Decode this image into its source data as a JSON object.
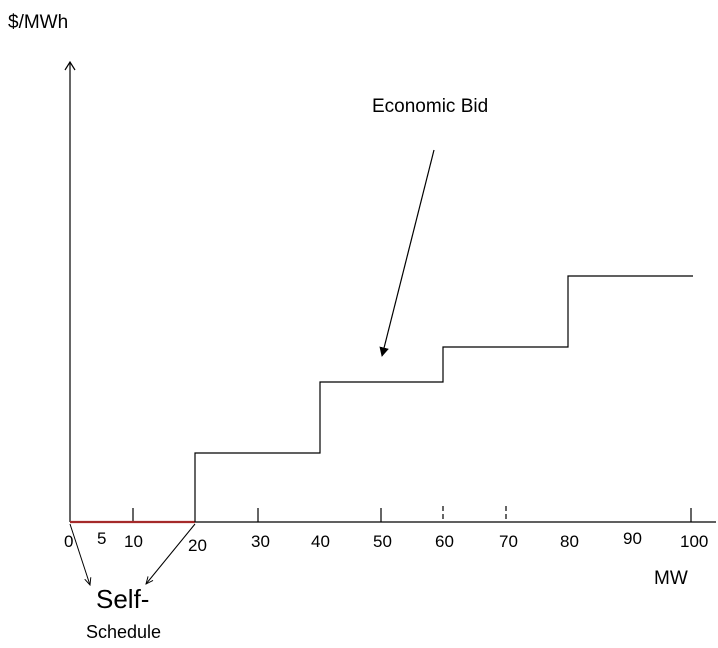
{
  "diagram": {
    "y_axis_label": "$/MWh",
    "x_axis_label": "MW",
    "economic_bid_label": "Economic Bid",
    "self_schedule_label_line1": "Self-",
    "self_schedule_label_line2": "Schedule",
    "x_ticks": [
      "0",
      "5",
      "10",
      "20",
      "30",
      "40",
      "50",
      "60",
      "70",
      "80",
      "90",
      "100"
    ]
  },
  "chart_data": {
    "type": "line",
    "x": [
      0,
      20,
      20,
      40,
      40,
      60,
      60,
      80,
      80,
      100
    ],
    "xlim": [
      0,
      100
    ],
    "xlabel": "MW",
    "ylabel": "$/MWh",
    "self_schedule_range": [
      0,
      20
    ],
    "colors": {
      "self_schedule": "#a52a2a",
      "bid": "#000000"
    }
  }
}
